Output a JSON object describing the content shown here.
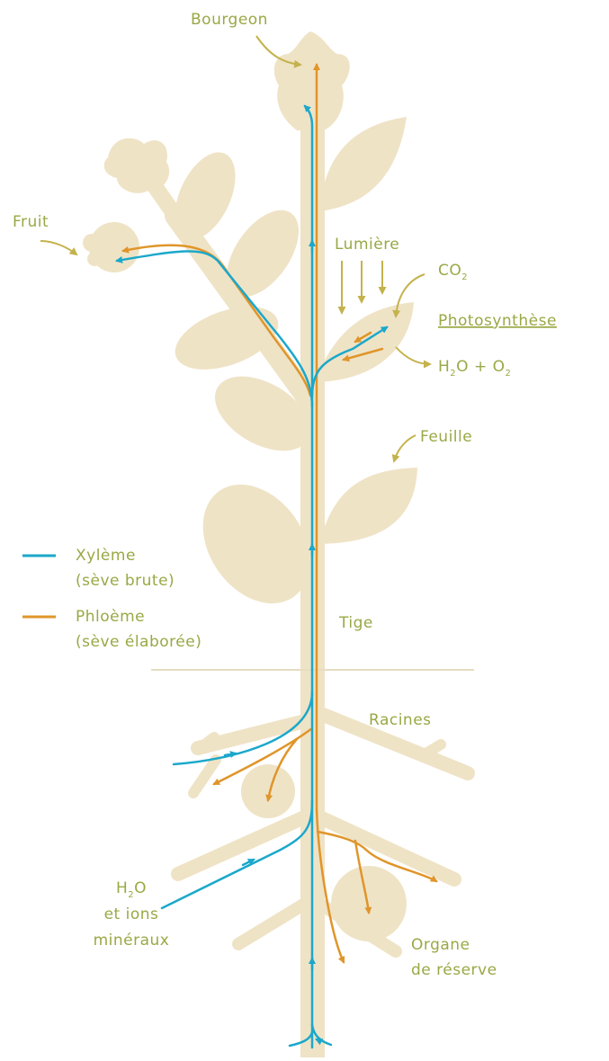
{
  "labels": {
    "bud": "Bourgeon",
    "fruit": "Fruit",
    "light": "Lumière",
    "co2": [
      "CO",
      "2"
    ],
    "photosynthesis": "Photosynthèse",
    "products": [
      "H",
      "2",
      "O + O",
      "2"
    ],
    "leaf": "Feuille",
    "stem": "Tige",
    "roots": "Racines",
    "uptake": {
      "formula": [
        "H",
        "2",
        "O"
      ],
      "lines": [
        "et ions",
        "minéraux"
      ]
    },
    "storage": [
      "Organe",
      "de réserve"
    ]
  },
  "legend": [
    {
      "name": "Xylème",
      "note": "(sève brute)",
      "color": "#1ba8cb"
    },
    {
      "name": "Phloème",
      "note": "(sève élaborée)",
      "color": "#e0952a"
    }
  ]
}
